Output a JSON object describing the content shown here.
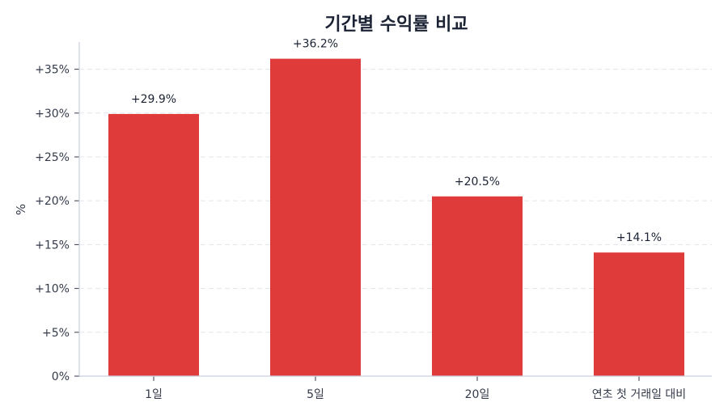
{
  "chart_data": {
    "type": "bar",
    "title": "기간별 수익률 비교",
    "xlabel": "",
    "ylabel": "%",
    "categories": [
      "1일",
      "5일",
      "20일",
      "연초 첫 거래일 대비"
    ],
    "values": [
      29.9,
      36.2,
      20.5,
      14.1
    ],
    "data_labels": [
      "+29.9%",
      "+36.2%",
      "+20.5%",
      "+14.1%"
    ],
    "ylim": [
      0,
      38.1
    ],
    "yticks": [
      0,
      5,
      10,
      15,
      20,
      25,
      30,
      35
    ],
    "ytick_labels": [
      "0%",
      "+5%",
      "+10%",
      "+15%",
      "+20%",
      "+25%",
      "+30%",
      "+35%"
    ],
    "grid": "horizontal dashed",
    "legend": "none",
    "colors": {
      "bar": "#e03b3b",
      "title": "#1a2233",
      "grid": "#e3e6ee",
      "axis": "#c9cfdd",
      "text": "#333a4a"
    }
  }
}
